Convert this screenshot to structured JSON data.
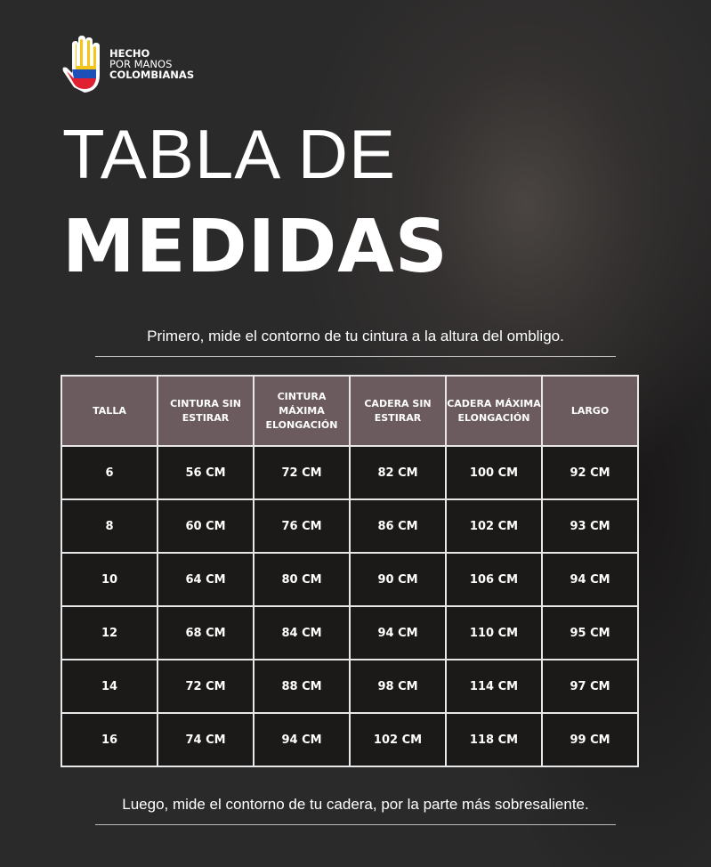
{
  "logo": {
    "line1": "HECHO",
    "line2": "POR MANOS",
    "line3": "COLOMBIANAS",
    "colors": {
      "yellow": "#f5c518",
      "blue": "#1d4fb8",
      "red": "#e02030"
    }
  },
  "title": {
    "line1": "TABLA DE",
    "line2": "MEDIDAS"
  },
  "instruction_top": "Primero, mide  el contorno de tu cintura a la altura del ombligo.",
  "instruction_bottom": "Luego, mide el contorno de tu cadera, por la parte más sobresaliente.",
  "table": {
    "headers": [
      "TALLA",
      "CINTURA SIN ESTIRAR",
      "CINTURA MÁXIMA ELONGACIÓN",
      "CADERA SIN ESTIRAR",
      "CADERA MÁXIMA ELONGACIÓN",
      "LARGO"
    ],
    "rows": [
      [
        "6",
        "56 CM",
        "72 CM",
        "82 CM",
        "100 CM",
        "92 CM"
      ],
      [
        "8",
        "60 CM",
        "76 CM",
        "86 CM",
        "102 CM",
        "93 CM"
      ],
      [
        "10",
        "64 CM",
        "80 CM",
        "90 CM",
        "106 CM",
        "94 CM"
      ],
      [
        "12",
        "68 CM",
        "84 CM",
        "94 CM",
        "110 CM",
        "95 CM"
      ],
      [
        "14",
        "72 CM",
        "88 CM",
        "98 CM",
        "114 CM",
        "97 CM"
      ],
      [
        "16",
        "74 CM",
        "94 CM",
        "102 CM",
        "118 CM",
        "99 CM"
      ]
    ]
  },
  "colors": {
    "header_bg": "#6b5b5e",
    "cell_bg": "#1c1a18",
    "border": "#e8e8e8"
  }
}
